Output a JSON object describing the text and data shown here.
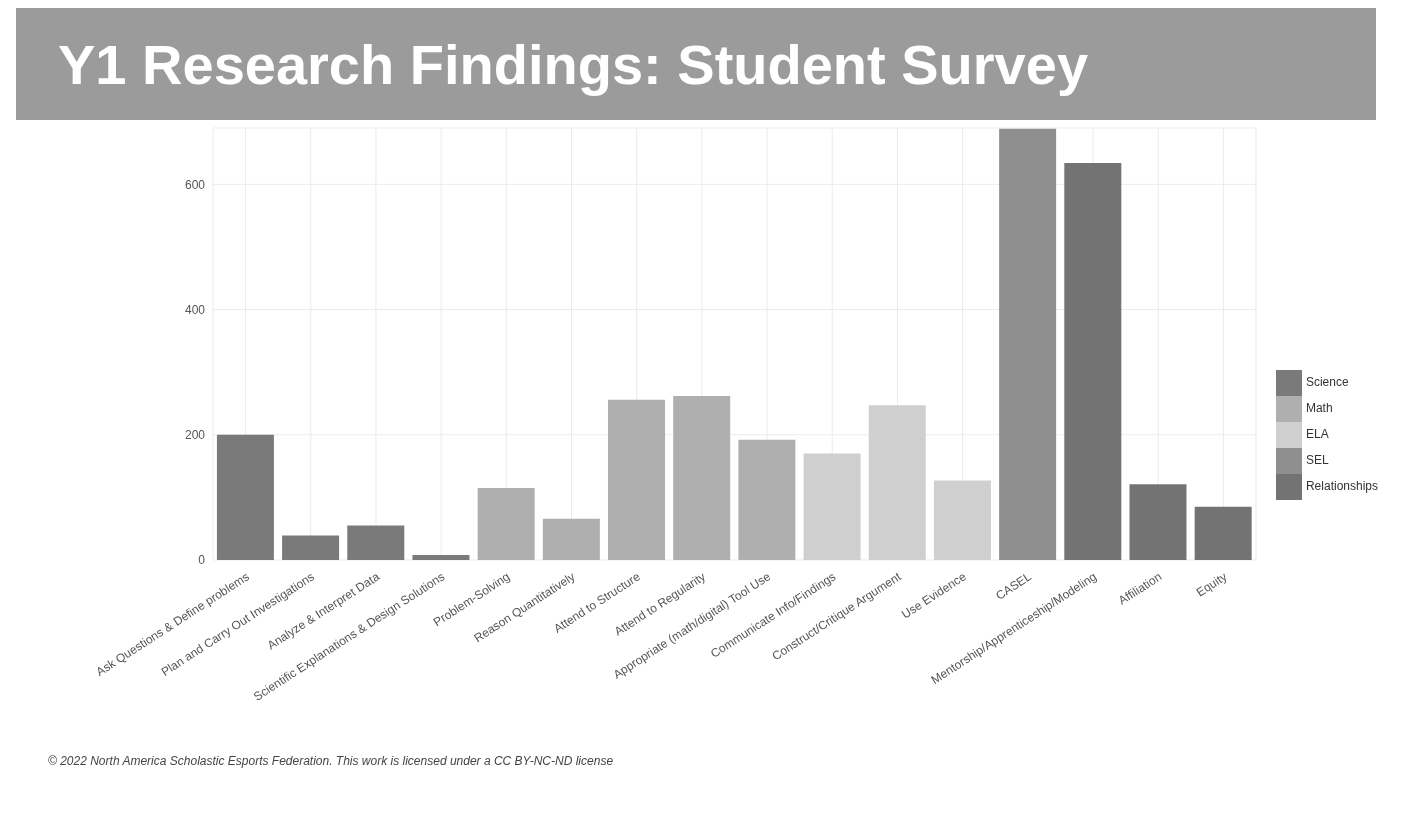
{
  "chart_data": {
    "type": "bar",
    "title": "Y1 Research Findings: Student Survey",
    "categories": [
      "Ask Questions & Define problems",
      "Plan and Carry Out Investigations",
      "Analyze & Interpret Data",
      "Scientific Explanations & Design Solutions",
      "Problem-Solving",
      "Reason Quantitatively",
      "Attend to Structure",
      "Attend to Regularity",
      "Appropriate (math/digital) Tool Use",
      "Communicate Info/Findings",
      "Construct/Critique Argument",
      "Use Evidence",
      "CASEL",
      "Mentorship/Apprenticeship/Modeling",
      "Affiliation",
      "Equity"
    ],
    "series": [
      {
        "name": "Science",
        "color": "#7a7a7a",
        "values": [
          200,
          39,
          55,
          8,
          null,
          null,
          null,
          null,
          null,
          null,
          null,
          null,
          null,
          null,
          null,
          null
        ]
      },
      {
        "name": "Math",
        "color": "#afafaf",
        "values": [
          null,
          null,
          null,
          null,
          115,
          66,
          256,
          262,
          192,
          null,
          null,
          null,
          null,
          null,
          null,
          null
        ]
      },
      {
        "name": "ELA",
        "color": "#cfcfcf",
        "values": [
          null,
          null,
          null,
          null,
          null,
          null,
          null,
          null,
          null,
          170,
          247,
          127,
          null,
          null,
          null,
          null
        ]
      },
      {
        "name": "SEL",
        "color": "#8f8f8f",
        "values": [
          null,
          null,
          null,
          null,
          null,
          null,
          null,
          null,
          null,
          null,
          null,
          null,
          689,
          null,
          null,
          null
        ]
      },
      {
        "name": "Relationships",
        "color": "#737373",
        "values": [
          null,
          null,
          null,
          null,
          null,
          null,
          null,
          null,
          null,
          null,
          null,
          null,
          null,
          634,
          121,
          85
        ]
      }
    ],
    "stacked": true,
    "ylim": [
      0,
      690
    ],
    "yticks": [
      0,
      200,
      400,
      600
    ],
    "grid": true,
    "legend": "right",
    "annotations": [
      "© 2022 North America Scholastic Esports Federation. This work is licensed under a CC BY-NC-ND license"
    ]
  }
}
